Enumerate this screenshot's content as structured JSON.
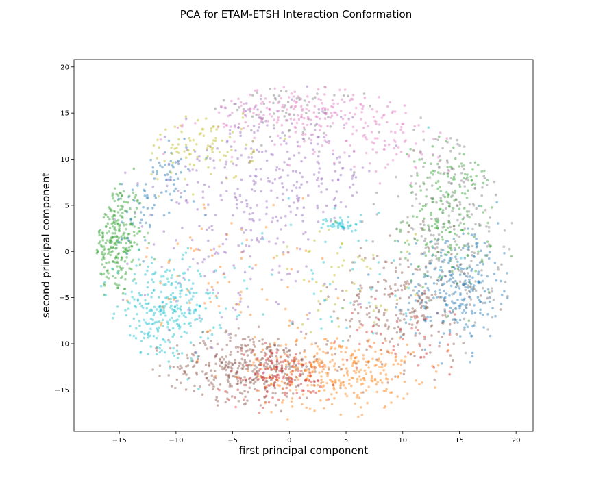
{
  "chart_data": {
    "type": "scatter",
    "title": "PCA for ETAM-ETSH Interaction Conformation",
    "xlabel": "first principal component",
    "ylabel": "second principal component",
    "xlim": [
      -19,
      21.5
    ],
    "ylim": [
      -19.5,
      20.8
    ],
    "xticks": [
      -15,
      -10,
      -5,
      0,
      5,
      10,
      15,
      20
    ],
    "yticks": [
      -15,
      -10,
      -5,
      0,
      5,
      10,
      15,
      20
    ],
    "grid": false,
    "legend": "none",
    "point_alpha": 0.45,
    "series": [
      {
        "color": "#2ca02c",
        "clusters": [
          {
            "x": -15.5,
            "y": 1.5,
            "sx": 1.3,
            "sy": 3.2,
            "n": 330
          },
          {
            "x": 14,
            "y": 4,
            "sx": 2.0,
            "sy": 4.0,
            "n": 220
          }
        ]
      },
      {
        "color": "#17becf",
        "clusters": [
          {
            "x": -11,
            "y": -6.5,
            "sx": 2.2,
            "sy": 2.8,
            "n": 300
          },
          {
            "x": 4.5,
            "y": 3,
            "sx": 0.8,
            "sy": 0.4,
            "n": 40
          },
          {
            "x": 4,
            "y": -2,
            "sx": 5,
            "sy": 4.5,
            "n": 60
          }
        ]
      },
      {
        "color": "#8c564b",
        "clusters": [
          {
            "x": -3.5,
            "y": -12.5,
            "sx": 3.5,
            "sy": 1.8,
            "n": 420
          },
          {
            "x": 10,
            "y": -6,
            "sx": 3.0,
            "sy": 3.5,
            "n": 230
          }
        ]
      },
      {
        "color": "#ff7f0e",
        "clusters": [
          {
            "x": 4,
            "y": -13,
            "sx": 3.5,
            "sy": 2.0,
            "n": 340
          },
          {
            "x": -5,
            "y": -2,
            "sx": 4,
            "sy": 4,
            "n": 70
          }
        ]
      },
      {
        "color": "#d62728",
        "clusters": [
          {
            "x": -1,
            "y": -13.5,
            "sx": 2.5,
            "sy": 1.5,
            "n": 130
          },
          {
            "x": 11,
            "y": -9,
            "sx": 3,
            "sy": 2,
            "n": 50
          }
        ]
      },
      {
        "color": "#1f77b4",
        "clusters": [
          {
            "x": 15,
            "y": -4,
            "sx": 2.5,
            "sy": 3.2,
            "n": 270
          },
          {
            "x": -13,
            "y": 5,
            "sx": 1.5,
            "sy": 2.5,
            "n": 60
          },
          {
            "x": -10,
            "y": 9,
            "sx": 1.2,
            "sy": 1.5,
            "n": 30
          }
        ]
      },
      {
        "color": "#7f7f7f",
        "clusters": [
          {
            "x": 14,
            "y": 5,
            "sx": 3.0,
            "sy": 4.5,
            "n": 200
          },
          {
            "x": 0,
            "y": 15.5,
            "sx": 3.0,
            "sy": 1.5,
            "n": 80
          },
          {
            "x": 16,
            "y": -4,
            "sx": 2,
            "sy": 2.5,
            "n": 60
          }
        ]
      },
      {
        "color": "#9467bd",
        "clusters": [
          {
            "x": -2,
            "y": 8,
            "sx": 5.0,
            "sy": 4.0,
            "n": 320
          },
          {
            "x": -5,
            "y": -2,
            "sx": 3.5,
            "sy": 4.0,
            "n": 90
          }
        ]
      },
      {
        "color": "#e377c2",
        "clusters": [
          {
            "x": 2,
            "y": 15,
            "sx": 5.5,
            "sy": 1.8,
            "n": 260
          },
          {
            "x": 9,
            "y": 11,
            "sx": 2.5,
            "sy": 2,
            "n": 50
          }
        ]
      },
      {
        "color": "#bcbd22",
        "clusters": [
          {
            "x": -8,
            "y": 11.5,
            "sx": 2.5,
            "sy": 2.0,
            "n": 110
          },
          {
            "x": 5,
            "y": -3,
            "sx": 3,
            "sy": 3,
            "n": 50
          }
        ]
      }
    ]
  }
}
